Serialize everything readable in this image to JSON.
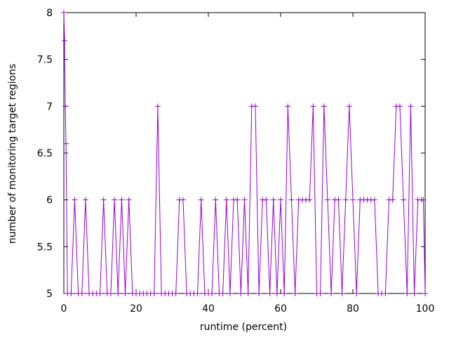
{
  "chart_data": {
    "type": "line",
    "title": "",
    "xlabel": "runtime (percent)",
    "ylabel": "number of monitoring target regions",
    "xlim": [
      0,
      100
    ],
    "ylim": [
      5,
      8
    ],
    "xticks": [
      0,
      20,
      40,
      60,
      80,
      100
    ],
    "yticks": [
      5,
      5.5,
      6,
      6.5,
      7,
      7.5,
      8
    ],
    "xtick_labels": [
      "0",
      "20",
      "40",
      "60",
      "80",
      "100"
    ],
    "ytick_labels": [
      "5",
      "5.5",
      "6",
      "6.5",
      "7",
      "7.5",
      "8"
    ],
    "grid": false,
    "legend": "none",
    "series": [
      {
        "color": "#9400d3",
        "marker": "plus",
        "x": [
          0,
          0.2,
          0.4,
          0.6,
          1,
          2,
          3,
          4,
          5,
          6,
          7,
          8,
          9,
          10,
          11,
          12,
          13,
          14,
          15,
          16,
          17,
          18,
          19,
          20,
          21,
          22,
          23,
          24,
          25,
          26,
          27,
          28,
          29,
          30,
          31,
          32,
          33,
          34,
          35,
          36,
          37,
          38,
          39,
          40,
          41,
          42,
          43,
          44,
          45,
          46,
          47,
          48,
          49,
          50,
          51,
          52,
          53,
          54,
          55,
          56,
          57,
          58,
          59,
          60,
          61,
          62,
          63,
          64,
          65,
          66,
          67,
          68,
          69,
          70,
          71,
          72,
          73,
          74,
          75,
          76,
          77,
          78,
          79,
          80,
          81,
          82,
          83,
          84,
          85,
          86,
          87,
          88,
          89,
          90,
          91,
          92,
          93,
          94,
          95,
          96,
          97,
          98,
          99,
          99.5,
          100
        ],
        "y": [
          8,
          7.7,
          7,
          6.6,
          5,
          5,
          6,
          5,
          5,
          6,
          5,
          5,
          5,
          5,
          6,
          5,
          5,
          6,
          5,
          6,
          5,
          6,
          5,
          5,
          5,
          5,
          5,
          5,
          5,
          7,
          5,
          5,
          5,
          5,
          5,
          6,
          6,
          5,
          5,
          5,
          5,
          6,
          5,
          5,
          5,
          6,
          5,
          5,
          6,
          5,
          6,
          6,
          5,
          6,
          5,
          7,
          7,
          5,
          6,
          6,
          5,
          6,
          5,
          6,
          5,
          7,
          6,
          5,
          6,
          6,
          6,
          6,
          7,
          5,
          5,
          7,
          6,
          5,
          6,
          6,
          5,
          6,
          7,
          6,
          5,
          6,
          6,
          6,
          6,
          6,
          5,
          5,
          5,
          6,
          6,
          7,
          7,
          6,
          5,
          7,
          5,
          6,
          6,
          6,
          5
        ]
      }
    ]
  }
}
